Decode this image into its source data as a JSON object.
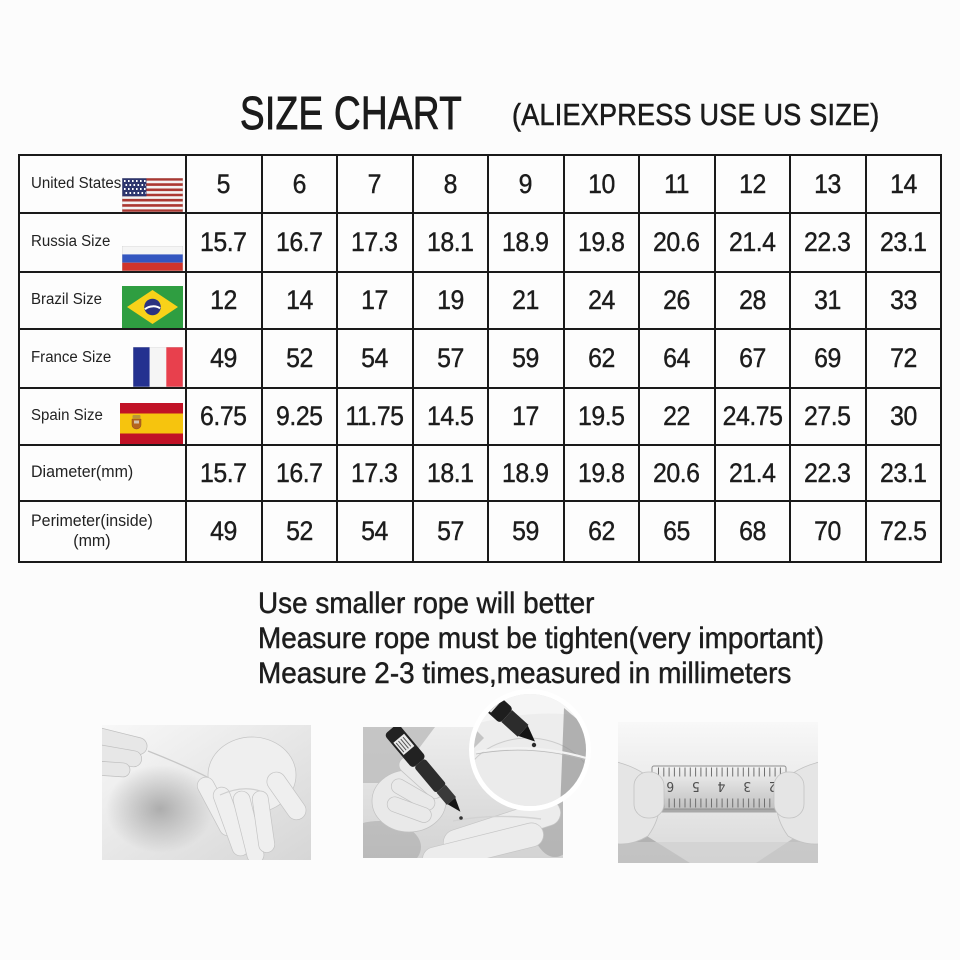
{
  "page": {
    "background": "#fcfcfc",
    "text_color": "#1c1c1c",
    "table_border_color": "#1a1a1a"
  },
  "header": {
    "title": "SIZE CHART",
    "subtitle": "(ALIEXPRESS USE US SIZE)"
  },
  "size_table": {
    "rows": [
      {
        "label_lines": [
          "United States"
        ],
        "flag": "us",
        "values": [
          "5",
          "6",
          "7",
          "8",
          "9",
          "10",
          "11",
          "12",
          "13",
          "14"
        ]
      },
      {
        "label_lines": [
          "Russia Size"
        ],
        "flag": "ru",
        "values": [
          "15.7",
          "16.7",
          "17.3",
          "18.1",
          "18.9",
          "19.8",
          "20.6",
          "21.4",
          "22.3",
          "23.1"
        ]
      },
      {
        "label_lines": [
          "Brazil Size"
        ],
        "flag": "br",
        "values": [
          "12",
          "14",
          "17",
          "19",
          "21",
          "24",
          "26",
          "28",
          "31",
          "33"
        ]
      },
      {
        "label_lines": [
          "France Size"
        ],
        "flag": "fr",
        "values": [
          "49",
          "52",
          "54",
          "57",
          "59",
          "62",
          "64",
          "67",
          "69",
          "72"
        ]
      },
      {
        "label_lines": [
          "Spain Size"
        ],
        "flag": "es",
        "values": [
          "6.75",
          "9.25",
          "11.75",
          "14.5",
          "17",
          "19.5",
          "22",
          "24.75",
          "27.5",
          "30"
        ]
      },
      {
        "label_lines": [
          "Diameter(mm)"
        ],
        "flag": null,
        "values": [
          "15.7",
          "16.7",
          "17.3",
          "18.1",
          "18.9",
          "19.8",
          "20.6",
          "21.4",
          "22.3",
          "23.1"
        ]
      },
      {
        "label_lines": [
          "Perimeter(inside)",
          "(mm)"
        ],
        "flag": null,
        "values": [
          "49",
          "52",
          "54",
          "57",
          "59",
          "62",
          "65",
          "68",
          "70",
          "72.5"
        ]
      }
    ]
  },
  "notes": [
    "Use smaller rope will better",
    "Measure rope must be tighten(very important)",
    "Measure 2-3 times,measured in millimeters"
  ],
  "media": {
    "photos": [
      {
        "icon": "string-wrapped-around-hand-photo"
      },
      {
        "icon": "marking-string-with-pen-photo"
      },
      {
        "icon": "measuring-string-with-ruler-photo"
      }
    ],
    "inset_icon": "pen-marking-string-magnifier",
    "ruler_digits": "1 2 3 4 5 6 7"
  }
}
